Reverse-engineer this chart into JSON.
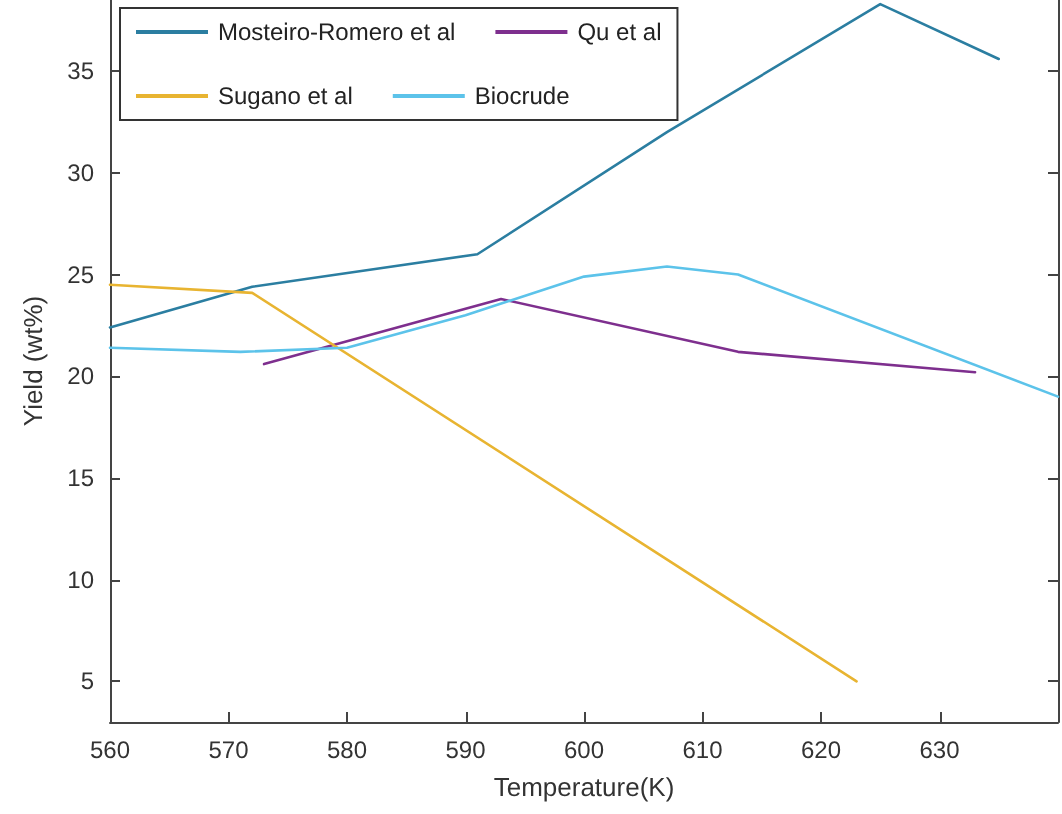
{
  "chart_data": {
    "type": "line",
    "xlabel": "Temperature(K)",
    "ylabel": "Yield (wt%)",
    "xlim": [
      560,
      640
    ],
    "xticks": [
      560,
      570,
      580,
      590,
      600,
      610,
      620,
      630
    ],
    "ylim": [
      3,
      38.5
    ],
    "yticks": [
      5,
      10,
      15,
      20,
      25,
      30,
      35
    ],
    "legend": "top left",
    "grid": false,
    "marker": "none",
    "series": [
      {
        "name": "Mosteiro-Romero et al",
        "color": "#2b7ea1",
        "x": [
          560,
          572,
          591,
          607,
          625,
          635
        ],
        "values": [
          22.4,
          24.4,
          26,
          32,
          38.3,
          35.6
        ]
      },
      {
        "name": "Qu et al",
        "color": "#7e2f8e",
        "x": [
          573,
          593,
          613,
          633
        ],
        "values": [
          20.6,
          23.8,
          21.2,
          20.2
        ]
      },
      {
        "name": "Sugano et al",
        "color": "#e8b431",
        "x": [
          560,
          572,
          623
        ],
        "values": [
          24.5,
          24.1,
          5
        ]
      },
      {
        "name": "Biocrude",
        "color": "#5cc3ea",
        "x": [
          560,
          571,
          580,
          590,
          600,
          607,
          613,
          640
        ],
        "values": [
          21.4,
          21.2,
          21.4,
          23,
          24.9,
          25.4,
          25,
          19
        ]
      }
    ]
  }
}
